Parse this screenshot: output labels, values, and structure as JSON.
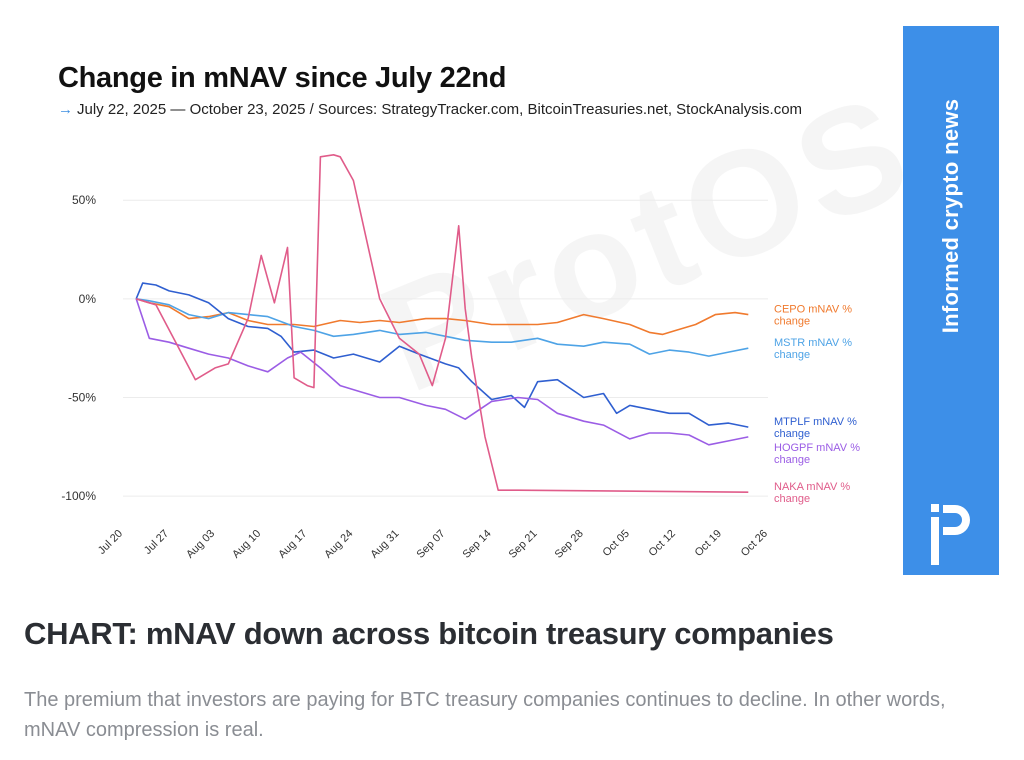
{
  "chart_data": {
    "type": "line",
    "title": "Change in mNAV since July 22nd",
    "subtitle": "July 22, 2025 — October 23, 2025 / Sources: StrategyTracker.com, BitcoinTreasuries.net, StockAnalysis.com",
    "subtitle_arrow": "→",
    "watermark": "ProtOS",
    "x_ticks": [
      "Jul 20",
      "Jul 27",
      "Aug 03",
      "Aug 10",
      "Aug 17",
      "Aug 24",
      "Aug 31",
      "Sep 07",
      "Sep 14",
      "Sep 21",
      "Sep 28",
      "Oct 05",
      "Oct 12",
      "Oct 19",
      "Oct 26"
    ],
    "xlim": [
      "2025-07-20",
      "2025-10-26"
    ],
    "y_ticks": [
      "50%",
      "0%",
      "-50%",
      "-100%"
    ],
    "y_tick_values": [
      50,
      0,
      -50,
      -100
    ],
    "ylim": [
      -105,
      80
    ],
    "grid": "horizontal",
    "series": [
      {
        "name": "CEPO mNAV % change",
        "label_lines": [
          "CEPO mNAV %",
          "change"
        ],
        "color": "#f07a2e",
        "points": [
          [
            "2025-07-22",
            0
          ],
          [
            "2025-07-24",
            -2
          ],
          [
            "2025-07-27",
            -4
          ],
          [
            "2025-07-30",
            -10
          ],
          [
            "2025-08-02",
            -9
          ],
          [
            "2025-08-05",
            -7
          ],
          [
            "2025-08-08",
            -11
          ],
          [
            "2025-08-11",
            -13
          ],
          [
            "2025-08-15",
            -13
          ],
          [
            "2025-08-18",
            -14
          ],
          [
            "2025-08-22",
            -11
          ],
          [
            "2025-08-25",
            -12
          ],
          [
            "2025-08-28",
            -11
          ],
          [
            "2025-08-31",
            -12
          ],
          [
            "2025-09-04",
            -10
          ],
          [
            "2025-09-07",
            -10
          ],
          [
            "2025-09-10",
            -11
          ],
          [
            "2025-09-14",
            -13
          ],
          [
            "2025-09-18",
            -13
          ],
          [
            "2025-09-21",
            -13
          ],
          [
            "2025-09-24",
            -12
          ],
          [
            "2025-09-28",
            -8
          ],
          [
            "2025-10-01",
            -10
          ],
          [
            "2025-10-05",
            -13
          ],
          [
            "2025-10-08",
            -17
          ],
          [
            "2025-10-10",
            -18
          ],
          [
            "2025-10-12",
            -16
          ],
          [
            "2025-10-15",
            -13
          ],
          [
            "2025-10-18",
            -8
          ],
          [
            "2025-10-21",
            -7
          ],
          [
            "2025-10-23",
            -8
          ]
        ]
      },
      {
        "name": "MSTR mNAV % change",
        "label_lines": [
          "MSTR mNAV %",
          "change"
        ],
        "color": "#4ea3e6",
        "points": [
          [
            "2025-07-22",
            0
          ],
          [
            "2025-07-24",
            -1
          ],
          [
            "2025-07-27",
            -3
          ],
          [
            "2025-07-30",
            -8
          ],
          [
            "2025-08-02",
            -10
          ],
          [
            "2025-08-05",
            -7
          ],
          [
            "2025-08-08",
            -8
          ],
          [
            "2025-08-11",
            -9
          ],
          [
            "2025-08-15",
            -14
          ],
          [
            "2025-08-18",
            -16
          ],
          [
            "2025-08-21",
            -19
          ],
          [
            "2025-08-24",
            -18
          ],
          [
            "2025-08-28",
            -16
          ],
          [
            "2025-08-31",
            -18
          ],
          [
            "2025-09-04",
            -17
          ],
          [
            "2025-09-07",
            -19
          ],
          [
            "2025-09-10",
            -21
          ],
          [
            "2025-09-14",
            -22
          ],
          [
            "2025-09-17",
            -22
          ],
          [
            "2025-09-21",
            -20
          ],
          [
            "2025-09-24",
            -23
          ],
          [
            "2025-09-28",
            -24
          ],
          [
            "2025-10-01",
            -22
          ],
          [
            "2025-10-05",
            -23
          ],
          [
            "2025-10-08",
            -28
          ],
          [
            "2025-10-11",
            -26
          ],
          [
            "2025-10-14",
            -27
          ],
          [
            "2025-10-17",
            -29
          ],
          [
            "2025-10-20",
            -27
          ],
          [
            "2025-10-23",
            -25
          ]
        ]
      },
      {
        "name": "MTPLF mNAV % change",
        "label_lines": [
          "MTPLF mNAV %",
          "change"
        ],
        "color": "#2f5fd0",
        "points": [
          [
            "2025-07-22",
            0
          ],
          [
            "2025-07-23",
            8
          ],
          [
            "2025-07-25",
            7
          ],
          [
            "2025-07-27",
            4
          ],
          [
            "2025-07-30",
            2
          ],
          [
            "2025-08-02",
            -2
          ],
          [
            "2025-08-05",
            -10
          ],
          [
            "2025-08-08",
            -14
          ],
          [
            "2025-08-11",
            -15
          ],
          [
            "2025-08-13",
            -19
          ],
          [
            "2025-08-15",
            -27
          ],
          [
            "2025-08-18",
            -26
          ],
          [
            "2025-08-21",
            -30
          ],
          [
            "2025-08-24",
            -28
          ],
          [
            "2025-08-28",
            -32
          ],
          [
            "2025-08-31",
            -24
          ],
          [
            "2025-09-03",
            -28
          ],
          [
            "2025-09-07",
            -33
          ],
          [
            "2025-09-09",
            -35
          ],
          [
            "2025-09-11",
            -42
          ],
          [
            "2025-09-14",
            -51
          ],
          [
            "2025-09-17",
            -49
          ],
          [
            "2025-09-19",
            -55
          ],
          [
            "2025-09-21",
            -42
          ],
          [
            "2025-09-24",
            -41
          ],
          [
            "2025-09-28",
            -50
          ],
          [
            "2025-10-01",
            -48
          ],
          [
            "2025-10-03",
            -58
          ],
          [
            "2025-10-05",
            -54
          ],
          [
            "2025-10-08",
            -56
          ],
          [
            "2025-10-11",
            -58
          ],
          [
            "2025-10-14",
            -58
          ],
          [
            "2025-10-17",
            -64
          ],
          [
            "2025-10-20",
            -63
          ],
          [
            "2025-10-23",
            -65
          ]
        ]
      },
      {
        "name": "HOGPF mNAV % change",
        "label_lines": [
          "HOGPF mNAV %",
          "change"
        ],
        "color": "#9b5de5",
        "points": [
          [
            "2025-07-22",
            0
          ],
          [
            "2025-07-24",
            -20
          ],
          [
            "2025-07-27",
            -22
          ],
          [
            "2025-07-30",
            -25
          ],
          [
            "2025-08-02",
            -28
          ],
          [
            "2025-08-05",
            -30
          ],
          [
            "2025-08-08",
            -34
          ],
          [
            "2025-08-11",
            -37
          ],
          [
            "2025-08-14",
            -30
          ],
          [
            "2025-08-16",
            -27
          ],
          [
            "2025-08-19",
            -35
          ],
          [
            "2025-08-22",
            -44
          ],
          [
            "2025-08-25",
            -47
          ],
          [
            "2025-08-28",
            -50
          ],
          [
            "2025-08-31",
            -50
          ],
          [
            "2025-09-04",
            -54
          ],
          [
            "2025-09-07",
            -56
          ],
          [
            "2025-09-10",
            -61
          ],
          [
            "2025-09-14",
            -52
          ],
          [
            "2025-09-18",
            -50
          ],
          [
            "2025-09-21",
            -51
          ],
          [
            "2025-09-24",
            -58
          ],
          [
            "2025-09-28",
            -62
          ],
          [
            "2025-10-01",
            -64
          ],
          [
            "2025-10-05",
            -71
          ],
          [
            "2025-10-08",
            -68
          ],
          [
            "2025-10-11",
            -68
          ],
          [
            "2025-10-14",
            -69
          ],
          [
            "2025-10-17",
            -74
          ],
          [
            "2025-10-20",
            -72
          ],
          [
            "2025-10-23",
            -70
          ]
        ]
      },
      {
        "name": "NAKA mNAV % change",
        "label_lines": [
          "NAKA mNAV %",
          "change"
        ],
        "color": "#e05c8a",
        "points": [
          [
            "2025-07-22",
            0
          ],
          [
            "2025-07-25",
            -3
          ],
          [
            "2025-07-28",
            -22
          ],
          [
            "2025-07-31",
            -41
          ],
          [
            "2025-08-03",
            -35
          ],
          [
            "2025-08-05",
            -33
          ],
          [
            "2025-08-08",
            -10
          ],
          [
            "2025-08-10",
            22
          ],
          [
            "2025-08-12",
            -2
          ],
          [
            "2025-08-14",
            26
          ],
          [
            "2025-08-15",
            -40
          ],
          [
            "2025-08-17",
            -44
          ],
          [
            "2025-08-18",
            -45
          ],
          [
            "2025-08-19",
            72
          ],
          [
            "2025-08-21",
            73
          ],
          [
            "2025-08-22",
            72
          ],
          [
            "2025-08-24",
            60
          ],
          [
            "2025-08-26",
            30
          ],
          [
            "2025-08-28",
            0
          ],
          [
            "2025-08-31",
            -20
          ],
          [
            "2025-09-03",
            -28
          ],
          [
            "2025-09-05",
            -44
          ],
          [
            "2025-09-07",
            -20
          ],
          [
            "2025-09-09",
            37
          ],
          [
            "2025-09-10",
            -5
          ],
          [
            "2025-09-11",
            -30
          ],
          [
            "2025-09-13",
            -70
          ],
          [
            "2025-09-15",
            -97
          ],
          [
            "2025-09-18",
            -97
          ],
          [
            "2025-10-23",
            -98
          ]
        ]
      }
    ]
  },
  "side_banner": {
    "text": "Informed crypto news",
    "logo": "protos-p-logo"
  },
  "article": {
    "headline": "CHART: mNAV down across bitcoin treasury companies",
    "description": "The premium that investors are paying for BTC treasury companies continues to decline. In other words, mNAV compression is real."
  }
}
